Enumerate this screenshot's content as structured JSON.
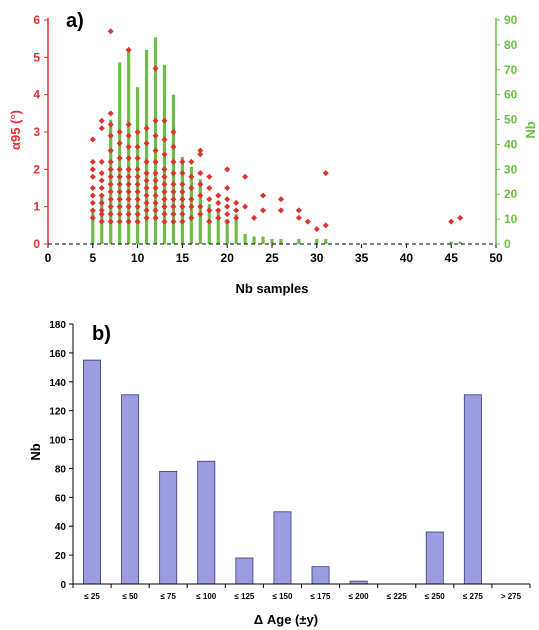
{
  "colors": {
    "red_series": "#e03030",
    "green_series": "#6cbf44",
    "bar_fill": "#9c9ce0",
    "bar_stroke": "#3a3a7a",
    "axis": "#000000"
  },
  "chart_data": [
    {
      "panel_label": "a)",
      "type": "scatter+bar",
      "xlabel": "Nb samples",
      "ylabel_left": "α95 (°)",
      "ylabel_right": "Nb",
      "xlim": [
        0,
        50
      ],
      "ylim_left": [
        0,
        6
      ],
      "ylim_right": [
        0,
        90
      ],
      "x_ticks": [
        0,
        5,
        10,
        15,
        20,
        25,
        30,
        35,
        40,
        45,
        50
      ],
      "y_left_ticks": [
        0,
        1,
        2,
        3,
        4,
        5,
        6
      ],
      "y_right_ticks": [
        0,
        10,
        20,
        30,
        40,
        50,
        60,
        70,
        80,
        90
      ],
      "grid": false,
      "series": [
        {
          "name": "Nb",
          "axis": "right",
          "kind": "bar",
          "x": [
            5,
            6,
            7,
            8,
            9,
            10,
            11,
            12,
            13,
            14,
            15,
            16,
            17,
            18,
            19,
            20,
            21,
            22,
            23,
            24,
            25,
            26,
            28,
            30,
            31,
            45,
            46
          ],
          "values": [
            14,
            20,
            50,
            73,
            78,
            63,
            78,
            83,
            72,
            60,
            35,
            31,
            26,
            16,
            14,
            10,
            12,
            4,
            3,
            3,
            2,
            2,
            2,
            2,
            2,
            1,
            1
          ]
        },
        {
          "name": "α95",
          "axis": "left",
          "kind": "scatter",
          "points": [
            [
              5,
              2.2
            ],
            [
              5,
              2.0
            ],
            [
              5,
              1.8
            ],
            [
              5,
              1.5
            ],
            [
              5,
              1.3
            ],
            [
              5,
              1.1
            ],
            [
              5,
              0.9
            ],
            [
              5,
              0.7
            ],
            [
              5,
              2.8
            ],
            [
              6,
              3.3
            ],
            [
              6,
              3.1
            ],
            [
              6,
              2.2
            ],
            [
              6,
              1.9
            ],
            [
              6,
              1.7
            ],
            [
              6,
              1.5
            ],
            [
              6,
              1.3
            ],
            [
              6,
              1.1
            ],
            [
              6,
              0.9
            ],
            [
              6,
              0.8
            ],
            [
              6,
              0.6
            ],
            [
              7,
              5.7
            ],
            [
              7,
              3.5
            ],
            [
              7,
              3.2
            ],
            [
              7,
              2.9
            ],
            [
              7,
              2.5
            ],
            [
              7,
              2.2
            ],
            [
              7,
              2.0
            ],
            [
              7,
              1.8
            ],
            [
              7,
              1.6
            ],
            [
              7,
              1.4
            ],
            [
              7,
              1.2
            ],
            [
              7,
              1.0
            ],
            [
              7,
              0.8
            ],
            [
              7,
              0.6
            ],
            [
              8,
              3.0
            ],
            [
              8,
              2.7
            ],
            [
              8,
              2.3
            ],
            [
              8,
              2.0
            ],
            [
              8,
              1.8
            ],
            [
              8,
              1.6
            ],
            [
              8,
              1.4
            ],
            [
              8,
              1.2
            ],
            [
              8,
              1.0
            ],
            [
              8,
              0.8
            ],
            [
              8,
              0.6
            ],
            [
              9,
              5.2
            ],
            [
              9,
              3.2
            ],
            [
              9,
              2.9
            ],
            [
              9,
              2.6
            ],
            [
              9,
              2.3
            ],
            [
              9,
              2.0
            ],
            [
              9,
              1.8
            ],
            [
              9,
              1.6
            ],
            [
              9,
              1.4
            ],
            [
              9,
              1.2
            ],
            [
              9,
              1.0
            ],
            [
              9,
              0.8
            ],
            [
              9,
              0.6
            ],
            [
              10,
              3.0
            ],
            [
              10,
              2.6
            ],
            [
              10,
              2.3
            ],
            [
              10,
              2.0
            ],
            [
              10,
              1.8
            ],
            [
              10,
              1.6
            ],
            [
              10,
              1.4
            ],
            [
              10,
              1.2
            ],
            [
              10,
              1.0
            ],
            [
              10,
              0.8
            ],
            [
              10,
              0.6
            ],
            [
              11,
              3.1
            ],
            [
              11,
              2.7
            ],
            [
              11,
              2.2
            ],
            [
              11,
              1.9
            ],
            [
              11,
              1.7
            ],
            [
              11,
              1.5
            ],
            [
              11,
              1.3
            ],
            [
              11,
              1.1
            ],
            [
              11,
              0.9
            ],
            [
              11,
              0.7
            ],
            [
              12,
              4.7
            ],
            [
              12,
              3.3
            ],
            [
              12,
              2.9
            ],
            [
              12,
              2.5
            ],
            [
              12,
              2.2
            ],
            [
              12,
              1.9
            ],
            [
              12,
              1.7
            ],
            [
              12,
              1.5
            ],
            [
              12,
              1.3
            ],
            [
              12,
              1.1
            ],
            [
              12,
              0.9
            ],
            [
              12,
              0.7
            ],
            [
              13,
              3.3
            ],
            [
              13,
              2.8
            ],
            [
              13,
              2.4
            ],
            [
              13,
              2.0
            ],
            [
              13,
              1.8
            ],
            [
              13,
              1.6
            ],
            [
              13,
              1.4
            ],
            [
              13,
              1.2
            ],
            [
              13,
              1.0
            ],
            [
              13,
              0.8
            ],
            [
              13,
              0.6
            ],
            [
              14,
              3.0
            ],
            [
              14,
              2.6
            ],
            [
              14,
              2.2
            ],
            [
              14,
              1.9
            ],
            [
              14,
              1.6
            ],
            [
              14,
              1.4
            ],
            [
              14,
              1.2
            ],
            [
              14,
              1.0
            ],
            [
              14,
              0.8
            ],
            [
              14,
              0.6
            ],
            [
              15,
              2.2
            ],
            [
              15,
              1.9
            ],
            [
              15,
              1.6
            ],
            [
              15,
              1.4
            ],
            [
              15,
              1.2
            ],
            [
              15,
              1.0
            ],
            [
              15,
              0.8
            ],
            [
              15,
              0.6
            ],
            [
              16,
              2.2
            ],
            [
              16,
              1.8
            ],
            [
              16,
              1.5
            ],
            [
              16,
              1.2
            ],
            [
              16,
              1.0
            ],
            [
              16,
              0.7
            ],
            [
              17,
              2.5
            ],
            [
              17,
              2.4
            ],
            [
              17,
              1.9
            ],
            [
              17,
              1.6
            ],
            [
              17,
              1.3
            ],
            [
              17,
              1.0
            ],
            [
              17,
              0.8
            ],
            [
              18,
              1.8
            ],
            [
              18,
              1.5
            ],
            [
              18,
              1.2
            ],
            [
              18,
              0.9
            ],
            [
              18,
              0.6
            ],
            [
              19,
              1.3
            ],
            [
              19,
              1.1
            ],
            [
              19,
              0.9
            ],
            [
              19,
              0.7
            ],
            [
              20,
              2.0
            ],
            [
              20,
              1.5
            ],
            [
              20,
              1.2
            ],
            [
              20,
              1.0
            ],
            [
              20,
              0.8
            ],
            [
              20,
              0.6
            ],
            [
              21,
              1.1
            ],
            [
              21,
              0.9
            ],
            [
              21,
              0.7
            ],
            [
              22,
              1.8
            ],
            [
              22,
              1.0
            ],
            [
              23,
              0.7
            ],
            [
              24,
              1.3
            ],
            [
              24,
              0.9
            ],
            [
              26,
              1.2
            ],
            [
              26,
              0.9
            ],
            [
              28,
              0.9
            ],
            [
              28,
              0.7
            ],
            [
              29,
              0.6
            ],
            [
              30,
              0.4
            ],
            [
              31,
              1.9
            ],
            [
              31,
              0.5
            ],
            [
              45,
              0.6
            ],
            [
              46,
              0.7
            ]
          ]
        }
      ]
    },
    {
      "panel_label": "b)",
      "type": "bar",
      "xlabel": "Δ Age (±y)",
      "ylabel": "Nb",
      "ylim": [
        0,
        180
      ],
      "y_ticks": [
        0,
        20,
        40,
        60,
        80,
        100,
        120,
        140,
        160,
        180
      ],
      "grid": false,
      "categories": [
        "≤ 25",
        "≤ 50",
        "≤ 75",
        "≤ 100",
        "≤ 125",
        "≤ 150",
        "≤ 175",
        "≤ 200",
        "≤ 225",
        "≤ 250",
        "≤ 275",
        "> 275"
      ],
      "values": [
        155,
        131,
        78,
        85,
        18,
        50,
        12,
        2,
        0,
        36,
        131,
        0
      ]
    }
  ]
}
